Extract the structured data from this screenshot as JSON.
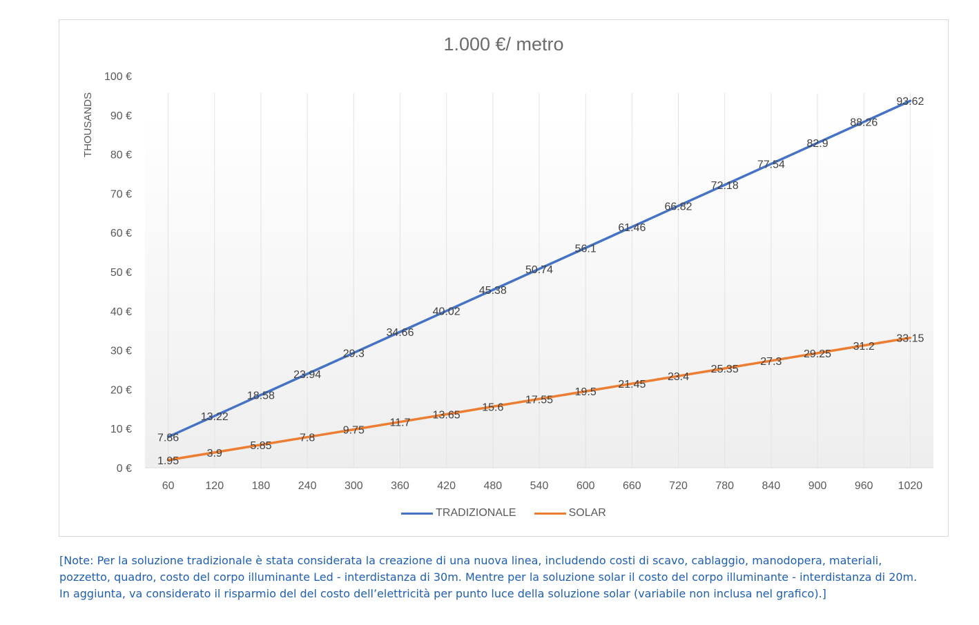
{
  "chart_data": {
    "type": "line",
    "title": "1.000 €/ metro",
    "ylabel": "THOUSANDS",
    "xlabel": "",
    "categories": [
      "60",
      "120",
      "180",
      "240",
      "300",
      "360",
      "420",
      "480",
      "540",
      "600",
      "660",
      "720",
      "780",
      "840",
      "900",
      "960",
      "1020"
    ],
    "y_ticks": [
      "0 €",
      "10 €",
      "20 €",
      "30 €",
      "40 €",
      "50 €",
      "60 €",
      "70 €",
      "80 €",
      "90 €",
      "100 €"
    ],
    "ylim": [
      0,
      100
    ],
    "grid": "vertical",
    "legend_position": "bottom",
    "series": [
      {
        "name": "TRADIZIONALE",
        "color": "#4472C4",
        "values": [
          7.86,
          13.22,
          18.58,
          23.94,
          29.3,
          34.66,
          40.02,
          45.38,
          50.74,
          56.1,
          61.46,
          66.82,
          72.18,
          77.54,
          82.9,
          88.26,
          93.62
        ]
      },
      {
        "name": "SOLAR",
        "color": "#ED7D31",
        "values": [
          1.95,
          3.9,
          5.85,
          7.8,
          9.75,
          11.7,
          13.65,
          15.6,
          17.55,
          19.5,
          21.45,
          23.4,
          25.35,
          27.3,
          29.25,
          31.2,
          33.15
        ]
      }
    ]
  },
  "note": {
    "lines": [
      "[Note: Per la soluzione tradizionale è stata considerata la creazione di una nuova linea, includendo costi di scavo, cablaggio, manodopera, materiali,",
      "pozzetto, quadro, costo del corpo illuminante Led - interdistanza di 30m. Mentre per la soluzione solar il costo del corpo illuminante - interdistanza di 20m.",
      "In aggiunta, va considerato il risparmio del del costo dell’elettricità per punto luce della soluzione solar (variabile non inclusa nel grafico).]"
    ]
  }
}
